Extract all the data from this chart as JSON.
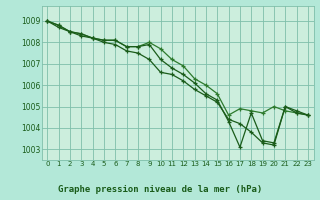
{
  "title": "Graphe pression niveau de la mer (hPa)",
  "bg_color": "#b3e8d8",
  "plot_bg_color": "#cceedd",
  "grid_color": "#7fbfaa",
  "line_color_dark": "#1a5c1a",
  "line_color_mid": "#2d7a2d",
  "xlim": [
    -0.5,
    23.5
  ],
  "ylim": [
    1002.5,
    1009.7
  ],
  "yticks": [
    1003,
    1004,
    1005,
    1006,
    1007,
    1008,
    1009
  ],
  "xticks": [
    0,
    1,
    2,
    3,
    4,
    5,
    6,
    7,
    8,
    9,
    10,
    11,
    12,
    13,
    14,
    15,
    16,
    17,
    18,
    19,
    20,
    21,
    22,
    23
  ],
  "series1": [
    1009.0,
    1008.8,
    1008.5,
    1008.4,
    1008.2,
    1008.1,
    1008.1,
    1007.8,
    1007.8,
    1008.0,
    1007.7,
    1007.2,
    1006.9,
    1006.3,
    1006.0,
    1005.6,
    1004.6,
    1004.9,
    1004.8,
    1004.7,
    1005.0,
    1004.8,
    1004.7,
    1004.6
  ],
  "series2": [
    1009.0,
    1008.8,
    1008.5,
    1008.3,
    1008.2,
    1008.0,
    1007.9,
    1007.6,
    1007.5,
    1007.2,
    1006.6,
    1006.5,
    1006.2,
    1005.8,
    1005.5,
    1005.2,
    1004.4,
    1004.2,
    1003.8,
    1003.3,
    1003.2,
    1005.0,
    1004.8,
    1004.6
  ],
  "series3": [
    1009.0,
    1008.7,
    1008.5,
    1008.4,
    1008.2,
    1008.1,
    1008.1,
    1007.8,
    1007.8,
    1007.9,
    1007.2,
    1006.8,
    1006.5,
    1006.1,
    1005.6,
    1005.3,
    1004.3,
    1003.1,
    1004.7,
    1003.4,
    1003.3,
    1005.0,
    1004.7,
    1004.6
  ],
  "ylabel_fontsize": 5.5,
  "xlabel_fontsize": 5.0,
  "title_fontsize": 6.5
}
